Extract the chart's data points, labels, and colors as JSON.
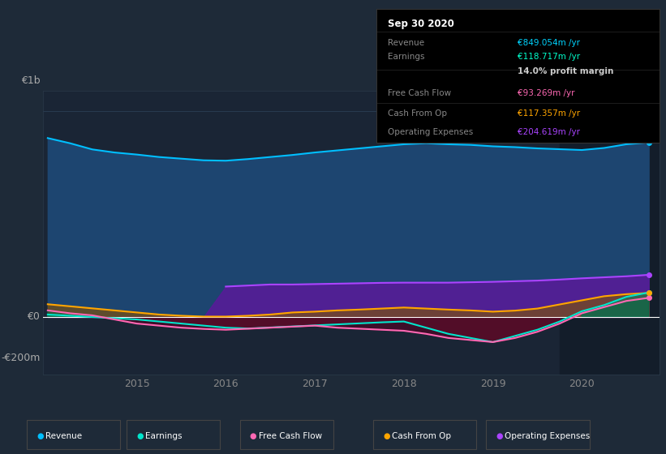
{
  "bg_color": "#1e2a38",
  "plot_bg_color": "#1a2535",
  "title_box": {
    "date": "Sep 30 2020",
    "rows": [
      {
        "label": "Revenue",
        "value": "€849.054m /yr",
        "value_color": "#00d4ff"
      },
      {
        "label": "Earnings",
        "value": "€118.717m /yr",
        "value_color": "#00ffcc"
      },
      {
        "label": "",
        "value": "14.0% profit margin",
        "value_color": "#cccccc"
      },
      {
        "label": "Free Cash Flow",
        "value": "€93.269m /yr",
        "value_color": "#ff69b4"
      },
      {
        "label": "Cash From Op",
        "value": "€117.357m /yr",
        "value_color": "#ffa500"
      },
      {
        "label": "Operating Expenses",
        "value": "€204.619m /yr",
        "value_color": "#aa44ff"
      }
    ]
  },
  "ylabel_top": "€1b",
  "ylabel_zero": "€0",
  "ylabel_bottom": "-€200m",
  "ylim": [
    -280,
    1100
  ],
  "legend": [
    {
      "label": "Revenue",
      "color": "#00bfff"
    },
    {
      "label": "Earnings",
      "color": "#00e5cc"
    },
    {
      "label": "Free Cash Flow",
      "color": "#ff69b4"
    },
    {
      "label": "Cash From Op",
      "color": "#ffa500"
    },
    {
      "label": "Operating Expenses",
      "color": "#aa44ff"
    }
  ],
  "x_years": [
    2014.0,
    2014.25,
    2014.5,
    2014.75,
    2015.0,
    2015.25,
    2015.5,
    2015.75,
    2016.0,
    2016.25,
    2016.5,
    2016.75,
    2017.0,
    2017.25,
    2017.5,
    2017.75,
    2018.0,
    2018.25,
    2018.5,
    2018.75,
    2019.0,
    2019.25,
    2019.5,
    2019.75,
    2020.0,
    2020.25,
    2020.5,
    2020.75
  ],
  "revenue": [
    870,
    845,
    815,
    800,
    790,
    778,
    770,
    762,
    760,
    768,
    778,
    788,
    800,
    810,
    820,
    830,
    840,
    845,
    840,
    837,
    830,
    826,
    820,
    816,
    812,
    822,
    840,
    849
  ],
  "earnings": [
    12,
    6,
    0,
    -6,
    -12,
    -22,
    -32,
    -42,
    -52,
    -56,
    -51,
    -46,
    -41,
    -36,
    -31,
    -26,
    -22,
    -52,
    -82,
    -102,
    -122,
    -92,
    -62,
    -22,
    28,
    58,
    98,
    119
  ],
  "free_cash_flow": [
    32,
    18,
    8,
    -12,
    -32,
    -42,
    -52,
    -58,
    -62,
    -57,
    -52,
    -47,
    -42,
    -52,
    -57,
    -62,
    -67,
    -82,
    -102,
    -112,
    -122,
    -102,
    -72,
    -32,
    18,
    48,
    78,
    93
  ],
  "cash_from_op": [
    62,
    52,
    42,
    32,
    22,
    12,
    6,
    2,
    2,
    6,
    12,
    22,
    26,
    32,
    36,
    41,
    46,
    41,
    36,
    32,
    26,
    31,
    41,
    61,
    81,
    101,
    111,
    117
  ],
  "operating_expenses": [
    0,
    0,
    0,
    0,
    0,
    0,
    0,
    0,
    148,
    153,
    158,
    158,
    160,
    162,
    164,
    166,
    167,
    167,
    167,
    169,
    171,
    174,
    177,
    182,
    188,
    193,
    198,
    205
  ],
  "highlight_start": 2019.75,
  "xticks": [
    2015,
    2016,
    2017,
    2018,
    2019,
    2020
  ]
}
